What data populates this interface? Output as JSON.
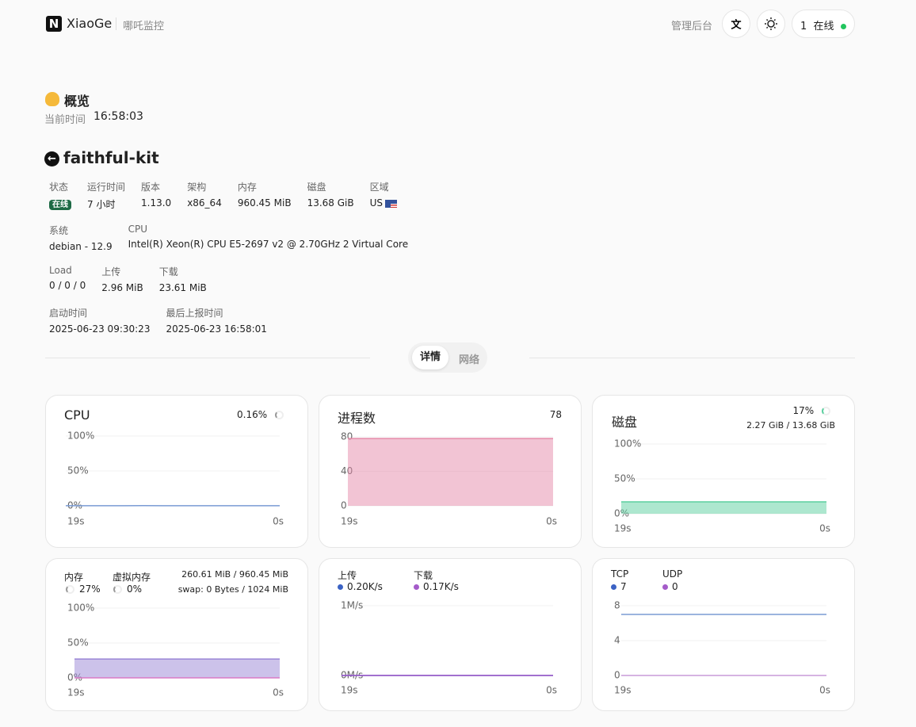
{
  "header": {
    "brand": "XiaoGe",
    "subtitle": "哪吒监控",
    "admin": "管理后台",
    "online_count": "1",
    "online_label": "在线"
  },
  "overview": {
    "title": "概览",
    "time_label": "当前时间",
    "time": "16:58:03"
  },
  "server": {
    "name": "faithful-kit",
    "info_rows": [
      [
        {
          "label": "状态",
          "value": "在线",
          "badge": true
        },
        {
          "label": "运行时间",
          "value": "7 小时"
        },
        {
          "label": "版本",
          "value": "1.13.0"
        },
        {
          "label": "架构",
          "value": "x86_64"
        },
        {
          "label": "内存",
          "value": "960.45 MiB"
        },
        {
          "label": "磁盘",
          "value": "13.68 GiB"
        },
        {
          "label": "区域",
          "value": "US",
          "flag": true
        }
      ],
      [
        {
          "label": "系统",
          "value": "debian - 12.9"
        },
        {
          "label": "CPU",
          "value": "Intel(R) Xeon(R) CPU E5-2697 v2 @ 2.70GHz 2 Virtual Core"
        }
      ],
      [
        {
          "label": "Load",
          "value": "0 / 0 / 0"
        },
        {
          "label": "上传",
          "value": "2.96 MiB"
        },
        {
          "label": "下载",
          "value": "23.61 MiB"
        }
      ],
      [
        {
          "label": "启动时间",
          "value": "2025-06-23 09:30:23"
        },
        {
          "label": "最后上报时间",
          "value": "2025-06-23 16:58:01"
        }
      ]
    ]
  },
  "tabs": [
    "详情",
    "网络"
  ],
  "cards": [
    {
      "title": "CPU",
      "value": "0.16%",
      "chart": {
        "type": "line",
        "ylim": [
          0,
          100
        ],
        "yticks": [
          {
            "value": 0,
            "label": "0%"
          },
          {
            "value": 50,
            "label": "50%"
          },
          {
            "value": 100,
            "label": "100%"
          }
        ],
        "xlabels": [
          "19s",
          "0s"
        ],
        "series": [
          {
            "color": "#7a9bd4",
            "fill": false,
            "values": [
              0.2,
              0.2,
              0.2,
              0.2,
              0.3,
              0.2,
              0.1,
              0.1,
              0.2,
              0.2,
              0.2,
              0.2
            ]
          }
        ]
      }
    },
    {
      "title": "进程数",
      "value": "78",
      "chart": {
        "type": "area",
        "ylim": [
          0,
          80
        ],
        "yticks": [
          0,
          40,
          80
        ],
        "xlabels": [
          "19s",
          "0s"
        ],
        "series": [
          {
            "color": "#e58aa9",
            "fill": true,
            "values": [
              78,
              78,
              78,
              78,
              78,
              78,
              78,
              78,
              78,
              78,
              78,
              78
            ]
          }
        ]
      }
    },
    {
      "title": "磁盘",
      "value": "17%",
      "detail": "2.27 GiB / 13.68 GiB",
      "chart": {
        "type": "area",
        "ylim": [
          0,
          100
        ],
        "yticks": [
          {
            "value": 0,
            "label": "0%"
          },
          {
            "value": 50,
            "label": "50%"
          },
          {
            "value": 100,
            "label": "100%"
          }
        ],
        "xlabels": [
          "19s",
          "0s"
        ],
        "series": [
          {
            "color": "#5ccf9f",
            "fill": true,
            "values": [
              17,
              17,
              17,
              17,
              17,
              17,
              17,
              17,
              17,
              17,
              17,
              17
            ]
          }
        ]
      }
    },
    {
      "mem_label": "内存",
      "mem_value": "27%",
      "swap_label": "虚拟内存",
      "swap_value": "0%",
      "mem_detail": "260.61 MiB / 960.45 MiB",
      "swap_detail": "swap: 0 Bytes / 1024 MiB",
      "chart": {
        "type": "area",
        "ylim": [
          0,
          100
        ],
        "yticks": [
          {
            "value": 0,
            "label": "0%"
          },
          {
            "value": 50,
            "label": "50%"
          },
          {
            "value": 100,
            "label": "100%"
          }
        ],
        "xlabels": [
          "19s",
          "0s"
        ],
        "series": [
          {
            "color": "#9a86d6",
            "fill": true,
            "values": [
              27,
              27,
              27,
              27,
              27,
              27,
              27,
              27,
              27,
              27,
              27,
              27
            ]
          },
          {
            "color": "#d97bc6",
            "fill": false,
            "values": [
              0,
              0,
              0,
              0,
              0,
              0,
              0,
              0,
              0,
              0,
              0,
              0
            ]
          }
        ]
      }
    },
    {
      "up_label": "上传",
      "up_value": "0.20K/s",
      "down_label": "下载",
      "down_value": "0.17K/s",
      "chart": {
        "type": "line",
        "ylim": [
          0,
          1
        ],
        "yticks": [
          {
            "value": 0,
            "label": "0M/s"
          },
          {
            "value": 1,
            "label": "1M/s"
          }
        ],
        "xlabels": [
          "19s",
          "0s"
        ],
        "series": [
          {
            "color": "#3b62c4",
            "fill": false,
            "values": [
              0.0002,
              0.0002,
              0.0002,
              0.0002,
              0.0002,
              0.0002,
              0.0002,
              0.0002,
              0.0002,
              0.0002,
              0.0002,
              0.0002
            ]
          },
          {
            "color": "#a45bc9",
            "fill": false,
            "values": [
              0.00017,
              0.00017,
              0.00017,
              0.00017,
              0.00017,
              0.00017,
              0.00017,
              0.00017,
              0.00017,
              0.00017,
              0.00017,
              0.00017
            ]
          }
        ]
      }
    },
    {
      "tcp_label": "TCP",
      "tcp_value": "7",
      "udp_label": "UDP",
      "udp_value": "0",
      "chart": {
        "type": "line",
        "ylim": [
          0,
          8
        ],
        "yticks": [
          0,
          4,
          8
        ],
        "xlabels": [
          "19s",
          "0s"
        ],
        "series": [
          {
            "color": "#7a9bd4",
            "fill": false,
            "values": [
              7,
              7,
              7,
              7,
              7,
              7,
              7,
              7,
              7,
              7,
              7,
              7
            ]
          },
          {
            "color": "#c99ad9",
            "fill": false,
            "values": [
              0,
              0,
              0,
              0,
              0,
              0,
              0,
              0,
              0,
              0,
              0,
              0
            ]
          }
        ]
      }
    }
  ]
}
